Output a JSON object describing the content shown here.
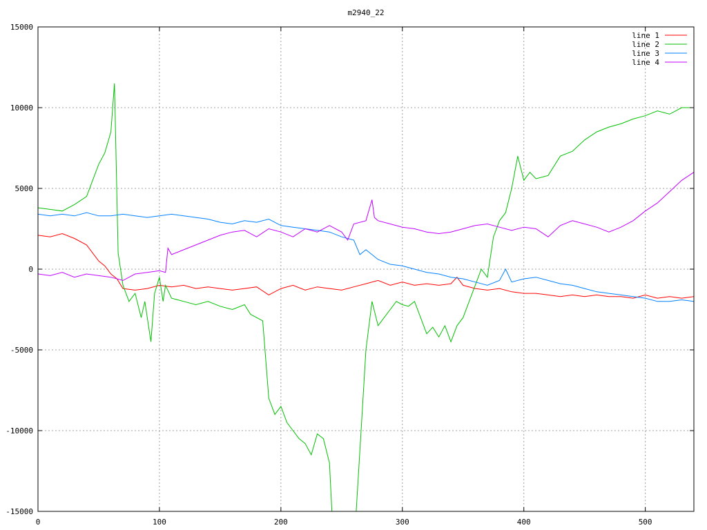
{
  "chart_data": {
    "type": "line",
    "title": "m2940_22",
    "xlabel": "",
    "ylabel": "",
    "xlim": [
      0,
      540
    ],
    "ylim": [
      -15000,
      15000
    ],
    "xticks": [
      0,
      100,
      200,
      300,
      400,
      500
    ],
    "yticks": [
      -15000,
      -10000,
      -5000,
      0,
      5000,
      10000,
      15000
    ],
    "grid": true,
    "legend_position": "top-right",
    "series": [
      {
        "name": "line 1",
        "color": "#ff0000",
        "points": [
          [
            0,
            2100
          ],
          [
            10,
            2000
          ],
          [
            20,
            2200
          ],
          [
            30,
            1900
          ],
          [
            40,
            1500
          ],
          [
            50,
            500
          ],
          [
            55,
            200
          ],
          [
            60,
            -300
          ],
          [
            65,
            -600
          ],
          [
            70,
            -1200
          ],
          [
            80,
            -1300
          ],
          [
            90,
            -1200
          ],
          [
            100,
            -1000
          ],
          [
            110,
            -1100
          ],
          [
            120,
            -1000
          ],
          [
            130,
            -1200
          ],
          [
            140,
            -1100
          ],
          [
            150,
            -1200
          ],
          [
            160,
            -1300
          ],
          [
            170,
            -1200
          ],
          [
            180,
            -1100
          ],
          [
            190,
            -1600
          ],
          [
            200,
            -1200
          ],
          [
            210,
            -1000
          ],
          [
            220,
            -1300
          ],
          [
            230,
            -1100
          ],
          [
            240,
            -1200
          ],
          [
            250,
            -1300
          ],
          [
            260,
            -1100
          ],
          [
            270,
            -900
          ],
          [
            280,
            -700
          ],
          [
            290,
            -1000
          ],
          [
            300,
            -800
          ],
          [
            310,
            -1000
          ],
          [
            320,
            -900
          ],
          [
            330,
            -1000
          ],
          [
            340,
            -900
          ],
          [
            345,
            -500
          ],
          [
            350,
            -1000
          ],
          [
            360,
            -1200
          ],
          [
            370,
            -1300
          ],
          [
            380,
            -1200
          ],
          [
            390,
            -1400
          ],
          [
            400,
            -1500
          ],
          [
            410,
            -1500
          ],
          [
            420,
            -1600
          ],
          [
            430,
            -1700
          ],
          [
            440,
            -1600
          ],
          [
            450,
            -1700
          ],
          [
            460,
            -1600
          ],
          [
            470,
            -1700
          ],
          [
            480,
            -1700
          ],
          [
            490,
            -1800
          ],
          [
            500,
            -1600
          ],
          [
            510,
            -1800
          ],
          [
            520,
            -1700
          ],
          [
            530,
            -1800
          ],
          [
            540,
            -1700
          ]
        ]
      },
      {
        "name": "line 2",
        "color": "#00c000",
        "points": [
          [
            0,
            3800
          ],
          [
            10,
            3700
          ],
          [
            20,
            3600
          ],
          [
            30,
            4000
          ],
          [
            40,
            4500
          ],
          [
            45,
            5500
          ],
          [
            50,
            6500
          ],
          [
            55,
            7200
          ],
          [
            60,
            8500
          ],
          [
            63,
            11500
          ],
          [
            66,
            1000
          ],
          [
            70,
            -1000
          ],
          [
            75,
            -2000
          ],
          [
            80,
            -1500
          ],
          [
            85,
            -3000
          ],
          [
            88,
            -2000
          ],
          [
            90,
            -3000
          ],
          [
            93,
            -4500
          ],
          [
            96,
            -1500
          ],
          [
            100,
            -500
          ],
          [
            103,
            -2000
          ],
          [
            105,
            -1000
          ],
          [
            110,
            -1800
          ],
          [
            120,
            -2000
          ],
          [
            130,
            -2200
          ],
          [
            140,
            -2000
          ],
          [
            150,
            -2300
          ],
          [
            160,
            -2500
          ],
          [
            170,
            -2200
          ],
          [
            175,
            -2800
          ],
          [
            180,
            -3000
          ],
          [
            185,
            -3200
          ],
          [
            190,
            -8000
          ],
          [
            195,
            -9000
          ],
          [
            200,
            -8500
          ],
          [
            205,
            -9500
          ],
          [
            210,
            -10000
          ],
          [
            215,
            -10500
          ],
          [
            220,
            -10800
          ],
          [
            225,
            -11500
          ],
          [
            230,
            -10200
          ],
          [
            235,
            -10500
          ],
          [
            240,
            -12000
          ],
          [
            242,
            -15000
          ],
          [
            262,
            -15000
          ],
          [
            266,
            -10000
          ],
          [
            270,
            -5000
          ],
          [
            275,
            -2000
          ],
          [
            280,
            -3500
          ],
          [
            285,
            -3000
          ],
          [
            290,
            -2500
          ],
          [
            295,
            -2000
          ],
          [
            300,
            -2200
          ],
          [
            305,
            -2300
          ],
          [
            310,
            -2000
          ],
          [
            315,
            -3000
          ],
          [
            320,
            -4000
          ],
          [
            325,
            -3600
          ],
          [
            330,
            -4200
          ],
          [
            335,
            -3500
          ],
          [
            340,
            -4500
          ],
          [
            345,
            -3500
          ],
          [
            350,
            -3000
          ],
          [
            355,
            -2000
          ],
          [
            360,
            -1000
          ],
          [
            365,
            0
          ],
          [
            370,
            -500
          ],
          [
            375,
            2000
          ],
          [
            380,
            3000
          ],
          [
            385,
            3500
          ],
          [
            390,
            5000
          ],
          [
            395,
            7000
          ],
          [
            400,
            5500
          ],
          [
            405,
            6000
          ],
          [
            410,
            5600
          ],
          [
            420,
            5800
          ],
          [
            430,
            7000
          ],
          [
            440,
            7300
          ],
          [
            450,
            8000
          ],
          [
            460,
            8500
          ],
          [
            470,
            8800
          ],
          [
            480,
            9000
          ],
          [
            490,
            9300
          ],
          [
            500,
            9500
          ],
          [
            510,
            9800
          ],
          [
            520,
            9600
          ],
          [
            530,
            10000
          ],
          [
            540,
            10000
          ]
        ]
      },
      {
        "name": "line 3",
        "color": "#0080ff",
        "points": [
          [
            0,
            3400
          ],
          [
            10,
            3300
          ],
          [
            20,
            3400
          ],
          [
            30,
            3300
          ],
          [
            40,
            3500
          ],
          [
            50,
            3300
          ],
          [
            60,
            3300
          ],
          [
            70,
            3400
          ],
          [
            80,
            3300
          ],
          [
            90,
            3200
          ],
          [
            100,
            3300
          ],
          [
            110,
            3400
          ],
          [
            120,
            3300
          ],
          [
            130,
            3200
          ],
          [
            140,
            3100
          ],
          [
            150,
            2900
          ],
          [
            160,
            2800
          ],
          [
            170,
            3000
          ],
          [
            180,
            2900
          ],
          [
            190,
            3100
          ],
          [
            200,
            2700
          ],
          [
            210,
            2600
          ],
          [
            220,
            2500
          ],
          [
            230,
            2400
          ],
          [
            240,
            2300
          ],
          [
            250,
            2000
          ],
          [
            260,
            1800
          ],
          [
            265,
            900
          ],
          [
            270,
            1200
          ],
          [
            280,
            600
          ],
          [
            290,
            300
          ],
          [
            300,
            200
          ],
          [
            310,
            0
          ],
          [
            320,
            -200
          ],
          [
            330,
            -300
          ],
          [
            340,
            -500
          ],
          [
            350,
            -600
          ],
          [
            360,
            -800
          ],
          [
            370,
            -1000
          ],
          [
            380,
            -700
          ],
          [
            385,
            0
          ],
          [
            390,
            -800
          ],
          [
            400,
            -600
          ],
          [
            410,
            -500
          ],
          [
            420,
            -700
          ],
          [
            430,
            -900
          ],
          [
            440,
            -1000
          ],
          [
            450,
            -1200
          ],
          [
            460,
            -1400
          ],
          [
            470,
            -1500
          ],
          [
            480,
            -1600
          ],
          [
            490,
            -1700
          ],
          [
            500,
            -1800
          ],
          [
            510,
            -2000
          ],
          [
            520,
            -2000
          ],
          [
            530,
            -1900
          ],
          [
            540,
            -2000
          ]
        ]
      },
      {
        "name": "line 4",
        "color": "#c000ff",
        "points": [
          [
            0,
            -300
          ],
          [
            10,
            -400
          ],
          [
            20,
            -200
          ],
          [
            30,
            -500
          ],
          [
            40,
            -300
          ],
          [
            50,
            -400
          ],
          [
            60,
            -500
          ],
          [
            70,
            -700
          ],
          [
            80,
            -300
          ],
          [
            90,
            -200
          ],
          [
            100,
            -100
          ],
          [
            105,
            -200
          ],
          [
            107,
            1300
          ],
          [
            110,
            900
          ],
          [
            120,
            1200
          ],
          [
            130,
            1500
          ],
          [
            140,
            1800
          ],
          [
            150,
            2100
          ],
          [
            160,
            2300
          ],
          [
            170,
            2400
          ],
          [
            180,
            2000
          ],
          [
            190,
            2500
          ],
          [
            200,
            2300
          ],
          [
            210,
            2000
          ],
          [
            220,
            2500
          ],
          [
            230,
            2300
          ],
          [
            240,
            2700
          ],
          [
            250,
            2300
          ],
          [
            255,
            1800
          ],
          [
            260,
            2800
          ],
          [
            270,
            3000
          ],
          [
            275,
            4300
          ],
          [
            277,
            3200
          ],
          [
            280,
            3000
          ],
          [
            290,
            2800
          ],
          [
            300,
            2600
          ],
          [
            310,
            2500
          ],
          [
            320,
            2300
          ],
          [
            330,
            2200
          ],
          [
            340,
            2300
          ],
          [
            350,
            2500
          ],
          [
            360,
            2700
          ],
          [
            370,
            2800
          ],
          [
            380,
            2600
          ],
          [
            390,
            2400
          ],
          [
            400,
            2600
          ],
          [
            410,
            2500
          ],
          [
            420,
            2000
          ],
          [
            430,
            2700
          ],
          [
            440,
            3000
          ],
          [
            450,
            2800
          ],
          [
            460,
            2600
          ],
          [
            470,
            2300
          ],
          [
            480,
            2600
          ],
          [
            490,
            3000
          ],
          [
            500,
            3600
          ],
          [
            510,
            4100
          ],
          [
            520,
            4800
          ],
          [
            530,
            5500
          ],
          [
            540,
            6000
          ]
        ]
      }
    ]
  }
}
